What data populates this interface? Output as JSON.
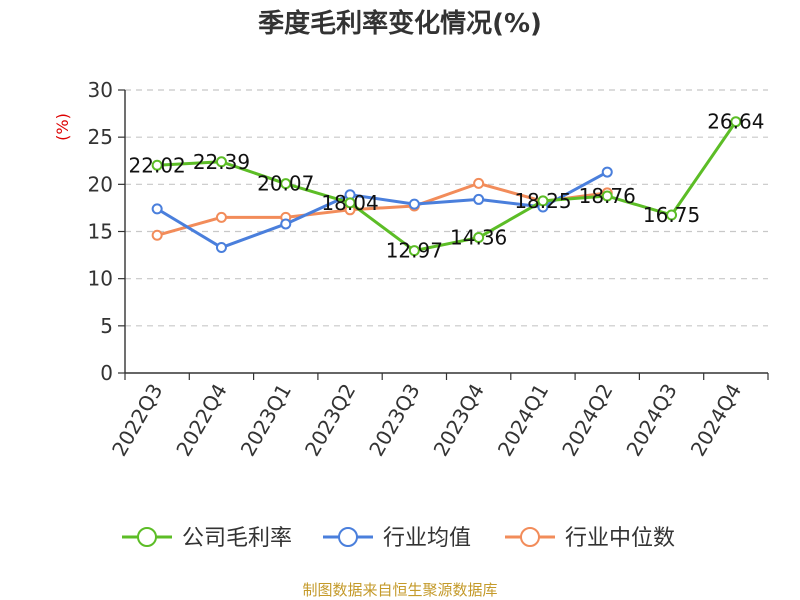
{
  "chart_data": {
    "type": "line",
    "title": "季度毛利率变化情况(%)",
    "ylabel": "(%)",
    "ylim": [
      0,
      30
    ],
    "yticks": [
      0,
      5,
      10,
      15,
      20,
      25,
      30
    ],
    "grid": true,
    "legend_position": "bottom",
    "categories": [
      "2022Q3",
      "2022Q4",
      "2023Q1",
      "2023Q2",
      "2023Q3",
      "2023Q4",
      "2024Q1",
      "2024Q2",
      "2024Q3",
      "2024Q4"
    ],
    "series": [
      {
        "name": "公司毛利率",
        "color": "#5cbd26",
        "values": [
          22.02,
          22.39,
          20.07,
          18.04,
          12.97,
          14.36,
          18.25,
          18.76,
          16.75,
          26.64
        ],
        "labels": [
          "22.02",
          "22.39",
          "20.07",
          "18.04",
          "12.97",
          "14.36",
          "18.25",
          "18.76",
          "16.75",
          "26.64"
        ]
      },
      {
        "name": "行业均值",
        "color": "#4a7fdc",
        "values": [
          17.4,
          13.3,
          15.8,
          18.9,
          17.9,
          18.4,
          17.6,
          21.3,
          null,
          null
        ]
      },
      {
        "name": "行业中位数",
        "color": "#f28c5a",
        "values": [
          14.6,
          16.5,
          16.5,
          17.3,
          17.7,
          20.1,
          18.2,
          19.1,
          null,
          null
        ]
      }
    ],
    "source": "制图数据来自恒生聚源数据库"
  }
}
